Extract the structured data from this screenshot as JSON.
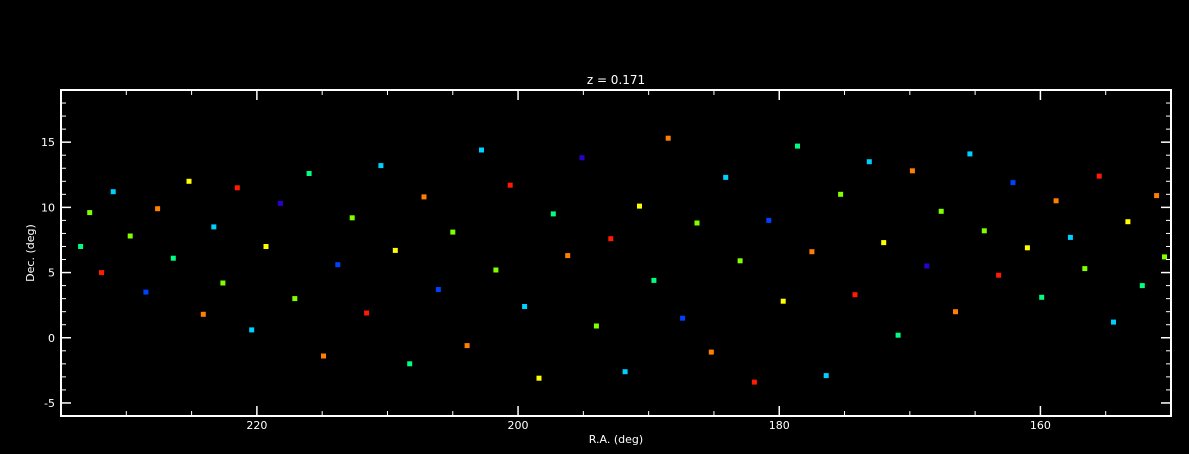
{
  "chart_data": {
    "type": "scatter",
    "title": "z = 0.171",
    "xlabel": "R.A. (deg)",
    "ylabel": "Dec. (deg)",
    "xlim": [
      235,
      150
    ],
    "ylim": [
      -6,
      19
    ],
    "x_ticks": [
      220,
      200,
      180,
      160
    ],
    "x_tick_labels": [
      "220",
      "200",
      "180",
      "160"
    ],
    "y_ticks": [
      -5,
      0,
      5,
      10,
      15
    ],
    "y_tick_labels": [
      "-5",
      "0",
      "5",
      "10",
      "15"
    ],
    "grid": false,
    "background": "#000000",
    "axis_color": "#ffffff",
    "color_scale": [
      "#2a00d0",
      "#0040ff",
      "#00d0ff",
      "#00ff80",
      "#80ff00",
      "#ffff00",
      "#ff8000",
      "#ff1a00"
    ],
    "points": [
      {
        "x": 233.5,
        "y": 7.0,
        "c": 0.45
      },
      {
        "x": 232.8,
        "y": 9.6,
        "c": 0.6
      },
      {
        "x": 231.9,
        "y": 5.0,
        "c": 0.9
      },
      {
        "x": 231.0,
        "y": 11.2,
        "c": 0.3
      },
      {
        "x": 229.7,
        "y": 7.8,
        "c": 0.55
      },
      {
        "x": 228.5,
        "y": 3.5,
        "c": 0.15
      },
      {
        "x": 227.6,
        "y": 9.9,
        "c": 0.75
      },
      {
        "x": 226.4,
        "y": 6.1,
        "c": 0.4
      },
      {
        "x": 225.2,
        "y": 12.0,
        "c": 0.65
      },
      {
        "x": 224.1,
        "y": 1.8,
        "c": 0.85
      },
      {
        "x": 223.3,
        "y": 8.5,
        "c": 0.25
      },
      {
        "x": 222.6,
        "y": 4.2,
        "c": 0.5
      },
      {
        "x": 221.5,
        "y": 11.5,
        "c": 0.95
      },
      {
        "x": 220.4,
        "y": 0.6,
        "c": 0.35
      },
      {
        "x": 219.3,
        "y": 7.0,
        "c": 0.7
      },
      {
        "x": 218.2,
        "y": 10.3,
        "c": 0.1
      },
      {
        "x": 217.1,
        "y": 3.0,
        "c": 0.6
      },
      {
        "x": 216.0,
        "y": 12.6,
        "c": 0.45
      },
      {
        "x": 214.9,
        "y": -1.4,
        "c": 0.8
      },
      {
        "x": 213.8,
        "y": 5.6,
        "c": 0.2
      },
      {
        "x": 212.7,
        "y": 9.2,
        "c": 0.55
      },
      {
        "x": 211.6,
        "y": 1.9,
        "c": 0.9
      },
      {
        "x": 210.5,
        "y": 13.2,
        "c": 0.3
      },
      {
        "x": 209.4,
        "y": 6.7,
        "c": 0.65
      },
      {
        "x": 208.3,
        "y": -2.0,
        "c": 0.4
      },
      {
        "x": 207.2,
        "y": 10.8,
        "c": 0.85
      },
      {
        "x": 206.1,
        "y": 3.7,
        "c": 0.15
      },
      {
        "x": 205.0,
        "y": 8.1,
        "c": 0.5
      },
      {
        "x": 203.9,
        "y": -0.6,
        "c": 0.75
      },
      {
        "x": 202.8,
        "y": 14.4,
        "c": 0.35
      },
      {
        "x": 201.7,
        "y": 5.2,
        "c": 0.6
      },
      {
        "x": 200.6,
        "y": 11.7,
        "c": 0.95
      },
      {
        "x": 199.5,
        "y": 2.4,
        "c": 0.25
      },
      {
        "x": 198.4,
        "y": -3.1,
        "c": 0.7
      },
      {
        "x": 197.3,
        "y": 9.5,
        "c": 0.45
      },
      {
        "x": 196.2,
        "y": 6.3,
        "c": 0.8
      },
      {
        "x": 195.1,
        "y": 13.8,
        "c": 0.1
      },
      {
        "x": 194.0,
        "y": 0.9,
        "c": 0.55
      },
      {
        "x": 192.9,
        "y": 7.6,
        "c": 0.9
      },
      {
        "x": 191.8,
        "y": -2.6,
        "c": 0.3
      },
      {
        "x": 190.7,
        "y": 10.1,
        "c": 0.65
      },
      {
        "x": 189.6,
        "y": 4.4,
        "c": 0.4
      },
      {
        "x": 188.5,
        "y": 15.3,
        "c": 0.85
      },
      {
        "x": 187.4,
        "y": 1.5,
        "c": 0.2
      },
      {
        "x": 186.3,
        "y": 8.8,
        "c": 0.6
      },
      {
        "x": 185.2,
        "y": -1.1,
        "c": 0.75
      },
      {
        "x": 184.1,
        "y": 12.3,
        "c": 0.35
      },
      {
        "x": 183.0,
        "y": 5.9,
        "c": 0.5
      },
      {
        "x": 181.9,
        "y": -3.4,
        "c": 0.95
      },
      {
        "x": 180.8,
        "y": 9.0,
        "c": 0.15
      },
      {
        "x": 179.7,
        "y": 2.8,
        "c": 0.7
      },
      {
        "x": 178.6,
        "y": 14.7,
        "c": 0.45
      },
      {
        "x": 177.5,
        "y": 6.6,
        "c": 0.8
      },
      {
        "x": 176.4,
        "y": -2.9,
        "c": 0.25
      },
      {
        "x": 175.3,
        "y": 11.0,
        "c": 0.55
      },
      {
        "x": 174.2,
        "y": 3.3,
        "c": 0.9
      },
      {
        "x": 173.1,
        "y": 13.5,
        "c": 0.3
      },
      {
        "x": 172.0,
        "y": 7.3,
        "c": 0.65
      },
      {
        "x": 170.9,
        "y": 0.2,
        "c": 0.4
      },
      {
        "x": 169.8,
        "y": 12.8,
        "c": 0.85
      },
      {
        "x": 168.7,
        "y": 5.5,
        "c": 0.1
      },
      {
        "x": 167.6,
        "y": 9.7,
        "c": 0.6
      },
      {
        "x": 166.5,
        "y": 2.0,
        "c": 0.75
      },
      {
        "x": 165.4,
        "y": 14.1,
        "c": 0.35
      },
      {
        "x": 164.3,
        "y": 8.2,
        "c": 0.5
      },
      {
        "x": 163.2,
        "y": 4.8,
        "c": 0.95
      },
      {
        "x": 162.1,
        "y": 11.9,
        "c": 0.2
      },
      {
        "x": 161.0,
        "y": 6.9,
        "c": 0.7
      },
      {
        "x": 159.9,
        "y": 3.1,
        "c": 0.45
      },
      {
        "x": 158.8,
        "y": 10.5,
        "c": 0.8
      },
      {
        "x": 157.7,
        "y": 7.7,
        "c": 0.25
      },
      {
        "x": 156.6,
        "y": 5.3,
        "c": 0.55
      },
      {
        "x": 155.5,
        "y": 12.4,
        "c": 0.9
      },
      {
        "x": 154.4,
        "y": 1.2,
        "c": 0.3
      },
      {
        "x": 153.3,
        "y": 8.9,
        "c": 0.65
      },
      {
        "x": 152.2,
        "y": 4.0,
        "c": 0.4
      },
      {
        "x": 151.1,
        "y": 10.9,
        "c": 0.85
      },
      {
        "x": 150.5,
        "y": 6.2,
        "c": 0.6
      }
    ]
  }
}
